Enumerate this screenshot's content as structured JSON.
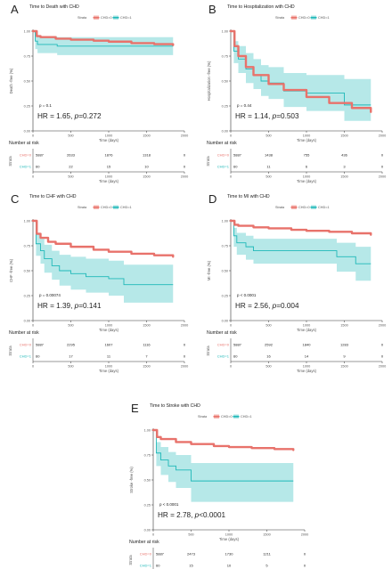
{
  "colors": {
    "group0": "#E8726B",
    "group1": "#1FB8B8",
    "band1": "#A9E4E4",
    "band0": "#F4B7B2",
    "axis": "#333333",
    "text": "#222222",
    "muted": "#555555"
  },
  "shared": {
    "legend_title": "Strata",
    "legend_labels": [
      "CHD=0",
      "CHD=1"
    ],
    "strata_labels": [
      "CHD=0",
      "CHD=1"
    ],
    "strata_axis_label": "Strata",
    "risk_table_title": "Number at risk",
    "time_label": "Time (days)",
    "x_ticks": [
      "0",
      "500",
      "1000",
      "1500",
      "2000"
    ],
    "y_ticks": [
      "0.00",
      "0.25",
      "0.50",
      "0.75",
      "1.00"
    ],
    "hr_prefix": "HR = ",
    "p_prefix": "p",
    "p_equals": "=",
    "p_less": "<"
  },
  "chart_data": [
    {
      "panel_letter": "A",
      "type": "line",
      "title": "Time to Death with CHD",
      "ylabel": "Death -free (%)",
      "xlabel": "Time (days)",
      "xlim": [
        0,
        2000
      ],
      "ylim": [
        0,
        1
      ],
      "logrank_p": "p = 0.1",
      "hr": "1.65",
      "hr_p": "0.272",
      "hr_p_op": "=",
      "risk_table": {
        "times": [
          0,
          500,
          1000,
          1500,
          2000
        ],
        "group0": [
          "5887",
          "2633",
          "1876",
          "1318",
          "0"
        ],
        "group1": [
          "60",
          "22",
          "15",
          "10",
          "0"
        ]
      },
      "series": [
        {
          "name": "CHD=0",
          "x": [
            0,
            50,
            100,
            300,
            500,
            800,
            1000,
            1300,
            1600,
            1850
          ],
          "y": [
            1.0,
            0.95,
            0.94,
            0.925,
            0.915,
            0.905,
            0.895,
            0.88,
            0.87,
            0.86
          ]
        },
        {
          "name": "CHD=1",
          "x": [
            0,
            30,
            60,
            300,
            320,
            1850
          ],
          "y": [
            1.0,
            0.9,
            0.867,
            0.867,
            0.85,
            0.85
          ],
          "lower": [
            1.0,
            0.82,
            0.78,
            0.78,
            0.76,
            0.76
          ],
          "upper": [
            1.0,
            0.97,
            0.95,
            0.95,
            0.94,
            0.94
          ]
        }
      ]
    },
    {
      "panel_letter": "B",
      "type": "line",
      "title": "Time to Hospitalization with CHD",
      "ylabel": "Hospitalization -free (%)",
      "xlabel": "Time (days)",
      "xlim": [
        0,
        2000
      ],
      "ylim": [
        0,
        1
      ],
      "logrank_p": "p = 0.44",
      "hr": "1.14",
      "hr_p": "0.503",
      "hr_p_op": "=",
      "risk_table": {
        "times": [
          0,
          500,
          1000,
          1500,
          2000
        ],
        "group0": [
          "5887",
          "1438",
          "755",
          "436",
          "0"
        ],
        "group1": [
          "60",
          "11",
          "6",
          "3",
          "0"
        ]
      },
      "series": [
        {
          "name": "CHD=0",
          "x": [
            0,
            50,
            100,
            200,
            300,
            500,
            700,
            1000,
            1300,
            1600,
            1850
          ],
          "y": [
            1.0,
            0.85,
            0.75,
            0.64,
            0.56,
            0.47,
            0.41,
            0.34,
            0.28,
            0.23,
            0.19
          ]
        },
        {
          "name": "CHD=1",
          "x": [
            0,
            40,
            100,
            200,
            300,
            400,
            500,
            700,
            1000,
            1500,
            1850
          ],
          "y": [
            1.0,
            0.8,
            0.72,
            0.62,
            0.56,
            0.5,
            0.48,
            0.4,
            0.38,
            0.26,
            0.26
          ],
          "lower": [
            1.0,
            0.68,
            0.58,
            0.48,
            0.42,
            0.35,
            0.32,
            0.24,
            0.2,
            0.1,
            0.1
          ],
          "upper": [
            1.0,
            0.9,
            0.85,
            0.78,
            0.72,
            0.66,
            0.64,
            0.58,
            0.56,
            0.52,
            0.52
          ]
        }
      ]
    },
    {
      "panel_letter": "C",
      "type": "line",
      "title": "Time to CHF with CHD",
      "ylabel": "CHF -free (%)",
      "xlabel": "Time (days)",
      "xlim": [
        0,
        2000
      ],
      "ylim": [
        0,
        1
      ],
      "logrank_p": "p = 0.00074",
      "hr": "1.39",
      "hr_p": "0.141",
      "hr_p_op": "=",
      "risk_table": {
        "times": [
          0,
          500,
          1000,
          1500,
          2000
        ],
        "group0": [
          "5887",
          "2295",
          "1607",
          "1116",
          "0"
        ],
        "group1": [
          "60",
          "17",
          "11",
          "7",
          "0"
        ]
      },
      "series": [
        {
          "name": "CHD=0",
          "x": [
            0,
            50,
            100,
            200,
            300,
            500,
            800,
            1000,
            1300,
            1600,
            1850
          ],
          "y": [
            1.0,
            0.87,
            0.83,
            0.79,
            0.77,
            0.74,
            0.71,
            0.69,
            0.67,
            0.655,
            0.64
          ]
        },
        {
          "name": "CHD=1",
          "x": [
            0,
            40,
            100,
            150,
            250,
            350,
            500,
            700,
            1000,
            1200,
            1850
          ],
          "y": [
            1.0,
            0.77,
            0.7,
            0.62,
            0.55,
            0.5,
            0.47,
            0.44,
            0.42,
            0.36,
            0.36
          ],
          "lower": [
            1.0,
            0.65,
            0.57,
            0.48,
            0.41,
            0.35,
            0.31,
            0.28,
            0.25,
            0.18,
            0.18
          ],
          "upper": [
            1.0,
            0.88,
            0.82,
            0.76,
            0.7,
            0.66,
            0.64,
            0.62,
            0.6,
            0.56,
            0.56
          ]
        }
      ]
    },
    {
      "panel_letter": "D",
      "type": "line",
      "title": "Time to MI with CHD",
      "ylabel": "MI -free (%)",
      "xlabel": "Time (days)",
      "xlim": [
        0,
        2000
      ],
      "ylim": [
        0,
        1
      ],
      "logrank_p": "p < 0.0001",
      "hr": "2.56",
      "hr_p": "0.004",
      "hr_p_op": "=",
      "risk_table": {
        "times": [
          0,
          500,
          1000,
          1500,
          2000
        ],
        "group0": [
          "5887",
          "2592",
          "1840",
          "1283",
          "0"
        ],
        "group1": [
          "60",
          "16",
          "14",
          "9",
          "0"
        ]
      },
      "series": [
        {
          "name": "CHD=0",
          "x": [
            0,
            50,
            100,
            300,
            500,
            800,
            1000,
            1300,
            1600,
            1850
          ],
          "y": [
            1.0,
            0.96,
            0.95,
            0.935,
            0.925,
            0.91,
            0.9,
            0.89,
            0.875,
            0.86
          ]
        },
        {
          "name": "CHD=1",
          "x": [
            0,
            40,
            80,
            200,
            300,
            1300,
            1400,
            1650,
            1850
          ],
          "y": [
            1.0,
            0.85,
            0.78,
            0.74,
            0.7,
            0.7,
            0.64,
            0.57,
            0.57
          ],
          "lower": [
            1.0,
            0.74,
            0.66,
            0.61,
            0.57,
            0.57,
            0.49,
            0.4,
            0.4
          ],
          "upper": [
            1.0,
            0.93,
            0.88,
            0.85,
            0.82,
            0.82,
            0.78,
            0.74,
            0.74
          ]
        }
      ]
    },
    {
      "panel_letter": "E",
      "type": "line",
      "title": "Time to Stroke with CHD",
      "ylabel": "Stroke -free (%)",
      "xlabel": "Time (days)",
      "xlim": [
        0,
        2000
      ],
      "ylim": [
        0,
        1
      ],
      "logrank_p": "p < 0.0001",
      "hr": "2.78",
      "hr_p": "0.0001",
      "hr_p_op": "<",
      "risk_table": {
        "times": [
          0,
          500,
          1000,
          1500,
          2000
        ],
        "group0": [
          "5887",
          "2473",
          "1730",
          "1211",
          "0"
        ],
        "group1": [
          "60",
          "15",
          "10",
          "5",
          "0"
        ]
      },
      "series": [
        {
          "name": "CHD=0",
          "x": [
            0,
            50,
            100,
            300,
            500,
            800,
            1000,
            1300,
            1600,
            1850
          ],
          "y": [
            1.0,
            0.93,
            0.91,
            0.88,
            0.86,
            0.84,
            0.83,
            0.82,
            0.81,
            0.8
          ]
        },
        {
          "name": "CHD=1",
          "x": [
            0,
            40,
            100,
            200,
            300,
            500,
            1850
          ],
          "y": [
            1.0,
            0.77,
            0.7,
            0.64,
            0.6,
            0.49,
            0.49
          ],
          "lower": [
            1.0,
            0.64,
            0.55,
            0.48,
            0.42,
            0.28,
            0.28
          ],
          "upper": [
            1.0,
            0.88,
            0.83,
            0.78,
            0.75,
            0.67,
            0.67
          ]
        }
      ]
    }
  ]
}
